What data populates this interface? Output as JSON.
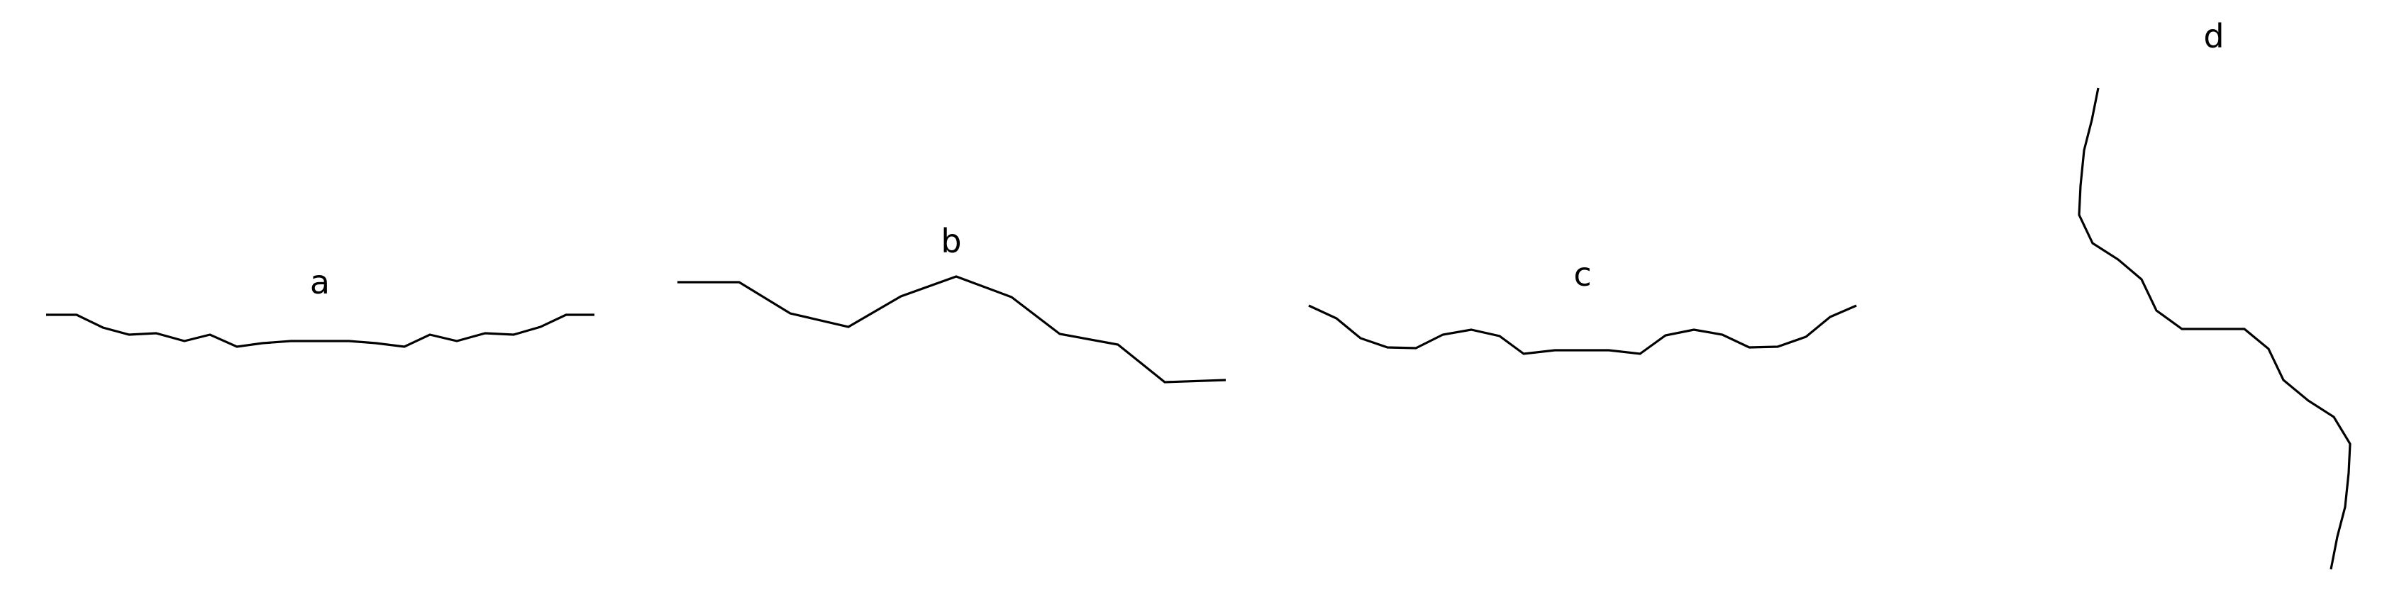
{
  "figure": {
    "panels": [
      {
        "id": "a",
        "label": "a"
      },
      {
        "id": "b",
        "label": "b"
      },
      {
        "id": "c",
        "label": "c"
      },
      {
        "id": "d",
        "label": "d"
      }
    ],
    "line_color": "#000000",
    "background_color": "#ffffff"
  }
}
